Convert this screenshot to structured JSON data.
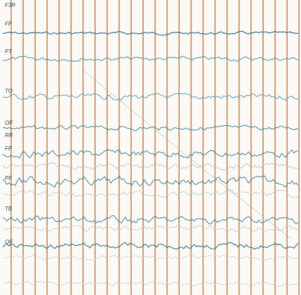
{
  "channel_labels": [
    "F3R",
    "FP",
    "PT",
    "TO",
    "OF",
    "RR",
    "FP",
    "PF",
    "TB",
    "OF"
  ]
}
